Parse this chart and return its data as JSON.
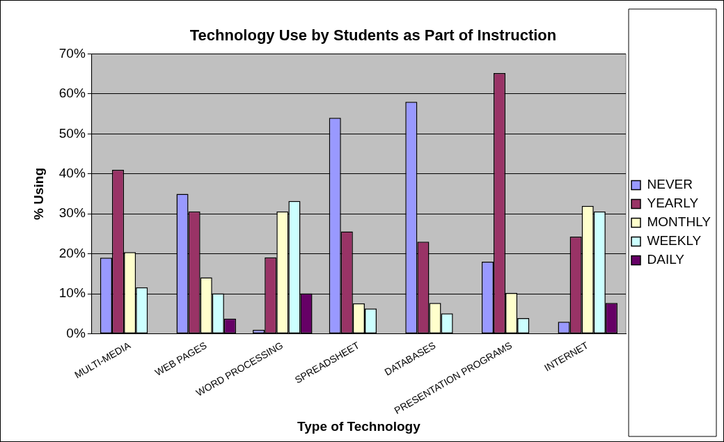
{
  "chart_data": {
    "type": "bar",
    "title": "Technology Use by Students as Part of Instruction",
    "xlabel": "Type of Technology",
    "ylabel": "% Using",
    "categories": [
      "MULTI-MEDIA",
      "WEB PAGES",
      "WORD PROCESSING",
      "SPREADSHEET",
      "DATABASES",
      "PRESENTATION PROGRAMS",
      "INTERNET"
    ],
    "series": [
      {
        "name": "NEVER",
        "color": "#9999ff",
        "values": [
          19,
          35,
          1,
          54,
          58,
          18,
          3
        ]
      },
      {
        "name": "YEARLY",
        "color": "#993366",
        "values": [
          41,
          30.6,
          19.1,
          25.6,
          23,
          65.2,
          24.3
        ]
      },
      {
        "name": "MONTHLY",
        "color": "#ffffcc",
        "values": [
          20.4,
          14.1,
          30.6,
          7.6,
          7.7,
          10.2,
          32
        ]
      },
      {
        "name": "WEEKLY",
        "color": "#ccffff",
        "values": [
          11.6,
          10.1,
          33.2,
          6.3,
          5.1,
          3.9,
          30.6
        ]
      },
      {
        "name": "DAILY",
        "color": "#660066",
        "values": [
          0,
          3.8,
          10.1,
          0,
          0,
          0,
          7.7
        ]
      }
    ],
    "ylim": [
      0,
      70
    ],
    "yticks": [
      {
        "value": 0,
        "label": "0%"
      },
      {
        "value": 10,
        "label": "10%"
      },
      {
        "value": 20,
        "label": "20%"
      },
      {
        "value": 30,
        "label": "30%"
      },
      {
        "value": 40,
        "label": "40%"
      },
      {
        "value": 50,
        "label": "50%"
      },
      {
        "value": 60,
        "label": "60%"
      },
      {
        "value": 70,
        "label": "70%"
      }
    ],
    "grid": "y",
    "legend": "right"
  }
}
